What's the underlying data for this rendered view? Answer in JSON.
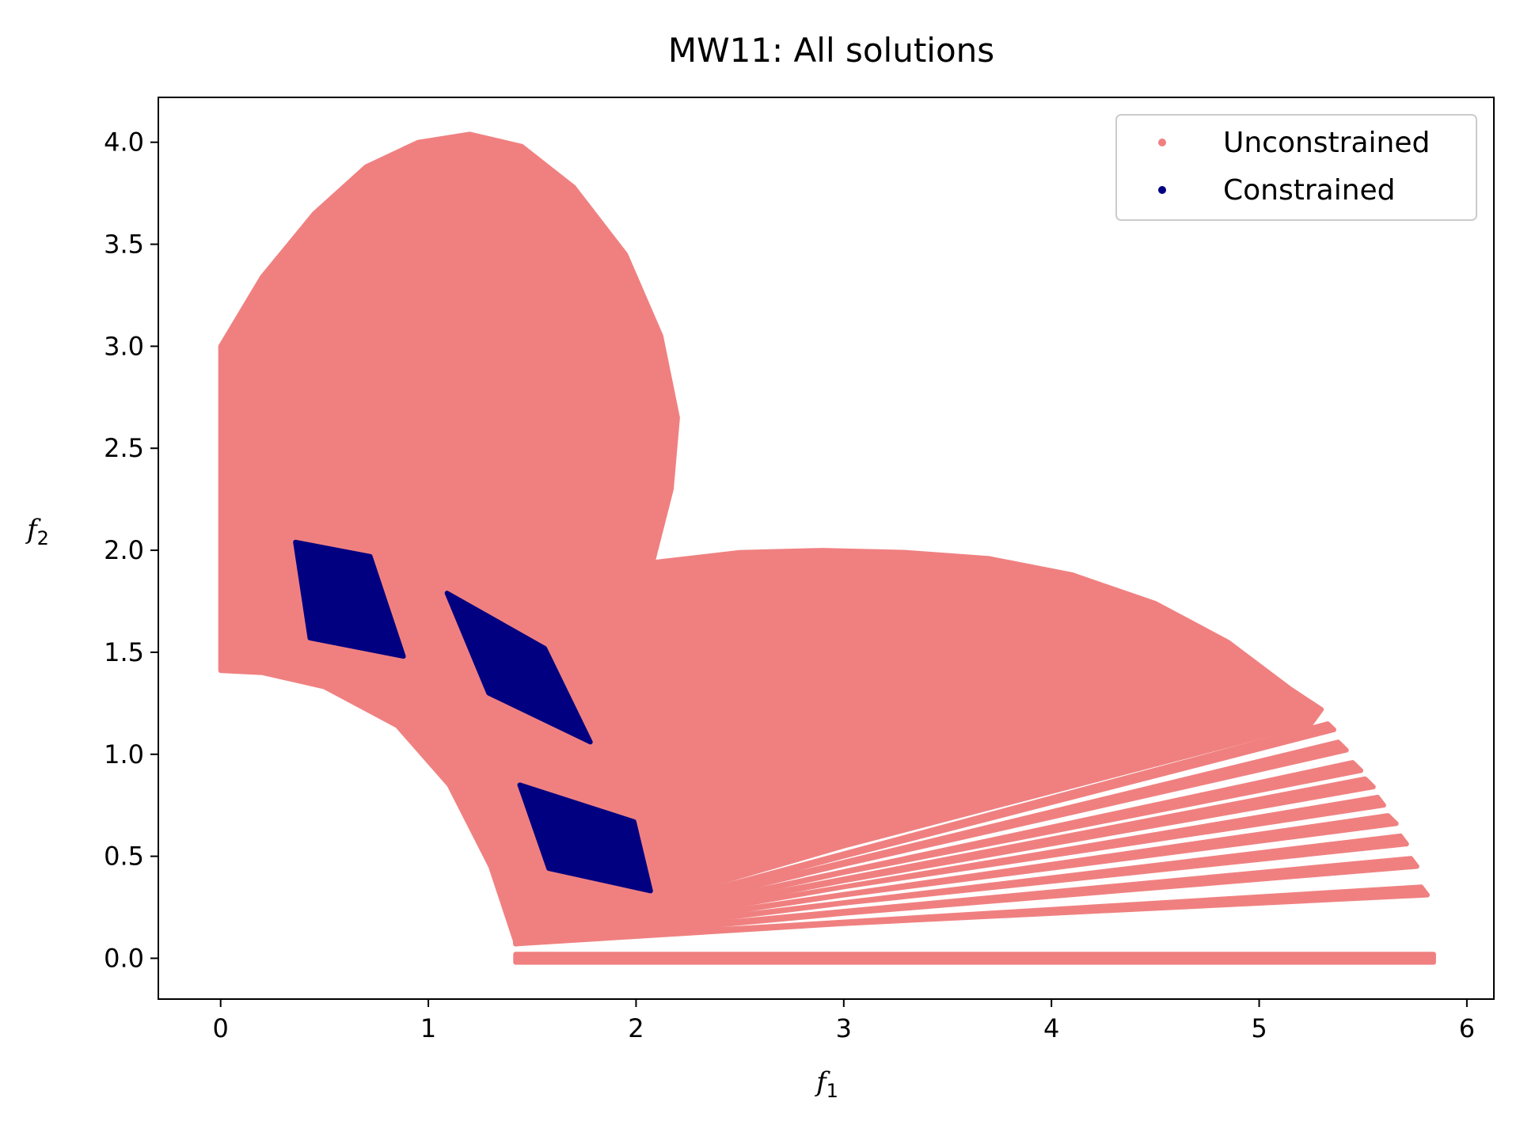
{
  "chart_data": {
    "type": "scatter",
    "title": "MW11: All solutions",
    "xlabel": {
      "base": "f",
      "sub": "1"
    },
    "ylabel": {
      "base": "f",
      "sub": "2"
    },
    "xlim": [
      -0.3,
      6.13
    ],
    "ylim": [
      -0.2,
      4.22
    ],
    "xticks": [
      0,
      1,
      2,
      3,
      4,
      5,
      6
    ],
    "xtick_labels": [
      "0",
      "1",
      "2",
      "3",
      "4",
      "5",
      "6"
    ],
    "yticks": [
      0.0,
      0.5,
      1.0,
      1.5,
      2.0,
      2.5,
      3.0,
      3.5,
      4.0
    ],
    "ytick_labels": [
      "0.0",
      "0.5",
      "1.0",
      "1.5",
      "2.0",
      "2.5",
      "3.0",
      "3.5",
      "4.0"
    ],
    "grid": false,
    "legend_position": "top-right",
    "series": [
      {
        "name": "Unconstrained",
        "color": "#f08080",
        "regions": [
          [
            [
              0,
              1.41
            ],
            [
              0,
              3.0
            ],
            [
              0.2,
              3.34
            ],
            [
              0.45,
              3.65
            ],
            [
              0.7,
              3.88
            ],
            [
              0.95,
              4.0
            ],
            [
              1.2,
              4.04
            ],
            [
              1.45,
              3.98
            ],
            [
              1.7,
              3.78
            ],
            [
              1.95,
              3.45
            ],
            [
              2.12,
              3.05
            ],
            [
              2.2,
              2.65
            ],
            [
              2.17,
              2.3
            ],
            [
              2.08,
              1.94
            ],
            [
              2.5,
              1.99
            ],
            [
              2.9,
              2.0
            ],
            [
              3.3,
              1.99
            ],
            [
              3.7,
              1.96
            ],
            [
              4.1,
              1.88
            ],
            [
              4.5,
              1.74
            ],
            [
              4.85,
              1.55
            ],
            [
              5.15,
              1.32
            ],
            [
              5.3,
              1.22
            ],
            [
              5.25,
              1.15
            ],
            [
              3.0,
              0.55
            ],
            [
              1.42,
              0.08
            ],
            [
              1.3,
              0.45
            ],
            [
              1.1,
              0.85
            ],
            [
              0.85,
              1.14
            ],
            [
              0.5,
              1.33
            ],
            [
              0.2,
              1.4
            ]
          ],
          [
            [
              1.42,
              0.08
            ],
            [
              5.33,
              1.15
            ],
            [
              5.36,
              1.12
            ],
            [
              3.0,
              0.5
            ],
            [
              1.42,
              0.07
            ]
          ],
          [
            [
              1.42,
              0.08
            ],
            [
              5.38,
              1.06
            ],
            [
              5.42,
              1.02
            ],
            [
              3.0,
              0.46
            ],
            [
              1.42,
              0.07
            ]
          ],
          [
            [
              1.42,
              0.08
            ],
            [
              5.45,
              0.96
            ],
            [
              5.49,
              0.92
            ],
            [
              3.0,
              0.42
            ],
            [
              1.42,
              0.07
            ]
          ],
          [
            [
              1.42,
              0.08
            ],
            [
              5.51,
              0.88
            ],
            [
              5.55,
              0.84
            ],
            [
              3.0,
              0.38
            ],
            [
              1.42,
              0.07
            ]
          ],
          [
            [
              1.42,
              0.08
            ],
            [
              5.57,
              0.79
            ],
            [
              5.6,
              0.75
            ],
            [
              3.0,
              0.35
            ],
            [
              1.42,
              0.07
            ]
          ],
          [
            [
              1.42,
              0.08
            ],
            [
              5.62,
              0.7
            ],
            [
              5.66,
              0.66
            ],
            [
              3.0,
              0.31
            ],
            [
              1.42,
              0.07
            ]
          ],
          [
            [
              1.42,
              0.08
            ],
            [
              5.68,
              0.6
            ],
            [
              5.71,
              0.56
            ],
            [
              3.0,
              0.27
            ],
            [
              1.42,
              0.07
            ]
          ],
          [
            [
              1.42,
              0.08
            ],
            [
              5.73,
              0.49
            ],
            [
              5.76,
              0.45
            ],
            [
              3.0,
              0.22
            ],
            [
              1.42,
              0.07
            ]
          ],
          [
            [
              1.42,
              0.08
            ],
            [
              5.78,
              0.35
            ],
            [
              5.81,
              0.31
            ],
            [
              3.0,
              0.17
            ],
            [
              1.42,
              0.07
            ]
          ],
          [
            [
              1.42,
              0.02
            ],
            [
              5.84,
              0.02
            ],
            [
              5.84,
              -0.02
            ],
            [
              1.42,
              -0.02
            ]
          ]
        ]
      },
      {
        "name": "Constrained",
        "color": "#000080",
        "regions": [
          [
            [
              0.36,
              2.04
            ],
            [
              0.72,
              1.97
            ],
            [
              0.88,
              1.48
            ],
            [
              0.43,
              1.57
            ]
          ],
          [
            [
              1.09,
              1.79
            ],
            [
              1.56,
              1.52
            ],
            [
              1.78,
              1.06
            ],
            [
              1.29,
              1.3
            ]
          ],
          [
            [
              1.44,
              0.85
            ],
            [
              1.99,
              0.67
            ],
            [
              2.07,
              0.33
            ],
            [
              1.58,
              0.44
            ]
          ]
        ]
      }
    ]
  }
}
